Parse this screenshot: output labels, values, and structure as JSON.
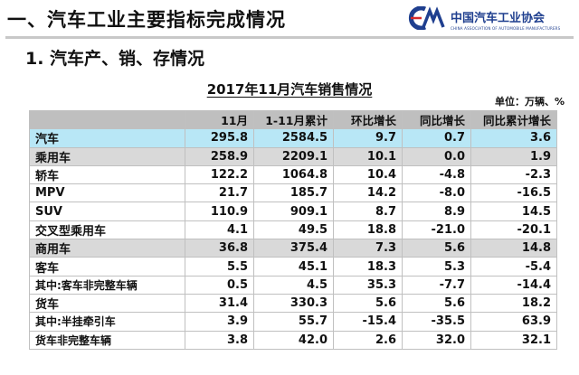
{
  "slide": {
    "heading": "一、汽车工业主要指标完成情况",
    "subheading": "1. 汽车产、销、存情况"
  },
  "logo": {
    "name": "中国汽车工业协会",
    "english": "CHINA ASSOCIATION OF AUTOMOBILE MANUFACTURERS"
  },
  "table": {
    "title": "2017年11月汽车销售情况",
    "unit": "单位：万辆、%",
    "columns": [
      "",
      "11月",
      "1-11月累计",
      "环比增长",
      "同比增长",
      "同比累计增长"
    ],
    "rows": [
      {
        "label": "汽车",
        "level": 0,
        "style": "total",
        "values": [
          "295.8",
          "2584.5",
          "9.7",
          "0.7",
          "3.6"
        ]
      },
      {
        "label": "乘用车",
        "level": 1,
        "style": "group",
        "values": [
          "258.9",
          "2209.1",
          "10.1",
          "0.0",
          "1.9"
        ]
      },
      {
        "label": "轿车",
        "level": 2,
        "style": "plain",
        "values": [
          "122.2",
          "1064.8",
          "10.4",
          "-4.8",
          "-2.3"
        ]
      },
      {
        "label": "MPV",
        "level": 2,
        "style": "plain",
        "values": [
          "21.7",
          "185.7",
          "14.2",
          "-8.0",
          "-16.5"
        ]
      },
      {
        "label": "SUV",
        "level": 2,
        "style": "plain",
        "values": [
          "110.9",
          "909.1",
          "8.7",
          "8.9",
          "14.5"
        ]
      },
      {
        "label": "交叉型乘用车",
        "level": 2,
        "style": "plain",
        "values": [
          "4.1",
          "49.5",
          "18.8",
          "-21.0",
          "-20.1"
        ]
      },
      {
        "label": "商用车",
        "level": 1,
        "style": "group",
        "values": [
          "36.8",
          "375.4",
          "7.3",
          "5.6",
          "14.8"
        ]
      },
      {
        "label": "客车",
        "level": 2,
        "style": "plain",
        "values": [
          "5.5",
          "45.1",
          "18.3",
          "5.3",
          "-5.4"
        ]
      },
      {
        "label": "其中:客车非完整车辆",
        "level": 3,
        "style": "plain",
        "values": [
          "0.5",
          "4.5",
          "35.3",
          "-7.7",
          "-14.4"
        ]
      },
      {
        "label": "货车",
        "level": 2,
        "style": "plain",
        "values": [
          "31.4",
          "330.3",
          "5.6",
          "5.6",
          "18.2"
        ]
      },
      {
        "label": "其中:半挂牵引车",
        "level": 3,
        "style": "plain",
        "values": [
          "3.9",
          "55.7",
          "-15.4",
          "-35.5",
          "63.9"
        ]
      },
      {
        "label": "货车非完整车辆",
        "level": 3,
        "style": "plain",
        "values": [
          "3.8",
          "42.0",
          "2.6",
          "32.0",
          "32.1"
        ]
      }
    ]
  }
}
